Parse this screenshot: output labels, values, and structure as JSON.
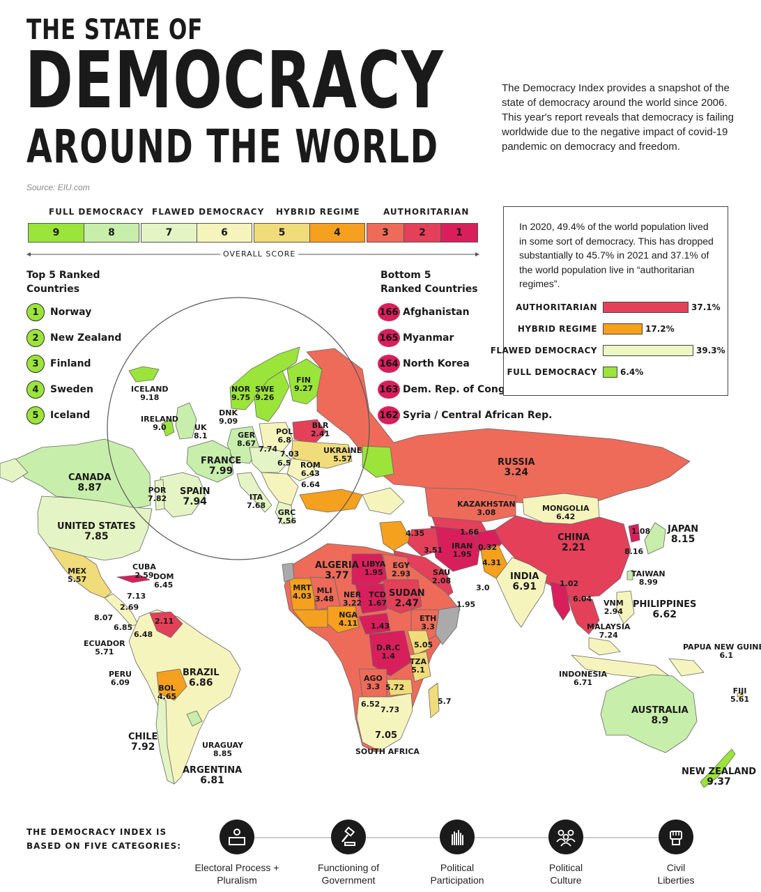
{
  "title": {
    "line1": "THE STATE OF",
    "line2": "DEMOCRACY",
    "line3": "AROUND THE WORLD"
  },
  "intro": "The Democracy Index provides a snapshot of the state of democracy around the world since 2006. This year's report reveals that democracy is failing worldwide due to the negative impact of covid-19 pandemic on democracy and freedom.",
  "source": "Source: EIU.com",
  "legend": {
    "groups": [
      "FULL DEMOCRACY",
      "FLAWED DEMOCRACY",
      "HYBRID REGIME",
      "AUTHORITARIAN"
    ],
    "scores": [
      "9",
      "8",
      "7",
      "6",
      "5",
      "4",
      "3",
      "2",
      "1"
    ],
    "colors": [
      "#9be43a",
      "#c8eeab",
      "#e5f4c4",
      "#f6f4bd",
      "#f0dc7a",
      "#f5a01e",
      "#ee6b5a",
      "#e4405a",
      "#d81f5c"
    ],
    "axis_label": "OVERALL SCORE"
  },
  "top5": {
    "title": [
      "Top 5 Ranked",
      "Countries"
    ],
    "items": [
      {
        "rank": "1",
        "name": "Norway"
      },
      {
        "rank": "2",
        "name": "New Zealand"
      },
      {
        "rank": "3",
        "name": "Finland"
      },
      {
        "rank": "4",
        "name": "Sweden"
      },
      {
        "rank": "5",
        "name": "Iceland"
      }
    ]
  },
  "bottom5": {
    "title": [
      "Bottom 5",
      "Ranked Countries"
    ],
    "items": [
      {
        "rank": "166",
        "name": "Afghanistan"
      },
      {
        "rank": "165",
        "name": "Myanmar"
      },
      {
        "rank": "164",
        "name": "North Korea"
      },
      {
        "rank": "163",
        "name": "Dem. Rep. of Congo"
      },
      {
        "rank": "162",
        "name": "Syria / Central African Rep."
      }
    ]
  },
  "population": {
    "text": "In 2020, 49.4% of the world population lived in some sort of democracy. This has dropped substantially to 45.7% in 2021 and 37.1% of the world population live in “authoritarian regimes”.",
    "bars": [
      {
        "label": "AUTHORITARIAN",
        "value": 37.1,
        "display": "37.1%",
        "color": "#e4405a"
      },
      {
        "label": "HYBRID REGIME",
        "value": 17.2,
        "display": "17.2%",
        "color": "#f5a01e"
      },
      {
        "label": "FLAWED DEMOCRACY",
        "value": 39.3,
        "display": "39.3%",
        "color": "#eef6c4"
      },
      {
        "label": "FULL DEMOCRACY",
        "value": 6.4,
        "display": "6.4%",
        "color": "#9be43a"
      }
    ]
  },
  "map_labels": {
    "canada": [
      "CANADA",
      "8.87"
    ],
    "us": [
      "UNITED STATES",
      "7.85"
    ],
    "mex": [
      "MEX",
      "5.57"
    ],
    "cuba": [
      "CUBA",
      "2.59"
    ],
    "dom": [
      "DOM",
      "6.45"
    ],
    "v713": "7.13",
    "v269": "2.69",
    "v807": "8.07",
    "v685": "6.85",
    "v648": "6.48",
    "v211": "2.11",
    "ecuador": [
      "ECUADOR",
      "5.71"
    ],
    "peru": [
      "PERU",
      "6.09"
    ],
    "brazil": [
      "BRAZIL",
      "6.86"
    ],
    "bol": [
      "BOL",
      "4.65"
    ],
    "chile": [
      "CHILE",
      "7.92"
    ],
    "uruguay": [
      "URAGUAY",
      "8.85"
    ],
    "argentina": [
      "ARGENTINA",
      "6.81"
    ],
    "iceland": [
      "ICELAND",
      "9.18"
    ],
    "ireland": [
      "IRELAND",
      "9.0"
    ],
    "uk": [
      "UK",
      "8.1"
    ],
    "nor": [
      "NOR",
      "9.75"
    ],
    "swe": [
      "SWE",
      "9.26"
    ],
    "fin": [
      "FIN",
      "9.27"
    ],
    "dnk": [
      "DNK",
      "9.09"
    ],
    "ger": [
      "GER",
      "8.67"
    ],
    "pol": [
      "POL",
      "6.8"
    ],
    "blr": [
      "BLR",
      "2.41"
    ],
    "ukraine": [
      "UKRAINE",
      "5.57"
    ],
    "france": [
      "FRANCE",
      "7.99"
    ],
    "v774": "7.74",
    "v703": "7.03",
    "v65": "6.5",
    "rom": [
      "ROM",
      "6.43"
    ],
    "v664": "6.64",
    "por": [
      "POR",
      "7.82"
    ],
    "spain": [
      "SPAIN",
      "7.94"
    ],
    "ita": [
      "ITA",
      "7.68"
    ],
    "grc": [
      "GRC",
      "7.56"
    ],
    "russia": [
      "RUSSIA",
      "3.24"
    ],
    "kazakhstan": [
      "KAZAKHSTAN",
      "3.08"
    ],
    "mongolia": [
      "MONGOLIA",
      "6.42"
    ],
    "china": [
      "CHINA",
      "2.21"
    ],
    "japan": [
      "JAPAN",
      "8.15"
    ],
    "v108": "1.08",
    "v816": "8.16",
    "taiwan": [
      "TAIWAN",
      "8.99"
    ],
    "india": [
      "INDIA",
      "6.91"
    ],
    "iran": [
      "IRAN",
      "1.95"
    ],
    "v166": "1.66",
    "v032": "0.32",
    "v431": "4.31",
    "v435": "4.35",
    "v351": "3.51",
    "sau": [
      "SAU",
      "2.08"
    ],
    "v30": "3.0",
    "v195": "1.95",
    "v102": "1.02",
    "v604": "6.04",
    "vnm": [
      "VNM",
      "2.94"
    ],
    "philippines": [
      "PHILIPPINES",
      "6.62"
    ],
    "malaysia": [
      "MALAYSIA",
      "7.24"
    ],
    "indonesia": [
      "INDONESIA",
      "6.71"
    ],
    "png": [
      "PAPUA NEW GUINEA",
      "6.1"
    ],
    "fiji": [
      "FIJI",
      "5.61"
    ],
    "australia": [
      "AUSTRALIA",
      "8.9"
    ],
    "nz": [
      "NEW ZEALAND",
      "9.37"
    ],
    "algeria": [
      "ALGERIA",
      "3.77"
    ],
    "libya": [
      "LIBYA",
      "1.95"
    ],
    "egy": [
      "EGY",
      "2.93"
    ],
    "mrt": [
      "MRT",
      "4.03"
    ],
    "mli": [
      "MLI",
      "3.48"
    ],
    "ner": [
      "NER",
      "3.22"
    ],
    "tcd": [
      "TCD",
      "1.67"
    ],
    "sudan": [
      "SUDAN",
      "2.47"
    ],
    "nga": [
      "NGA",
      "4.11"
    ],
    "eth": [
      "ETH",
      "3.3"
    ],
    "v143": "1.43",
    "drc": [
      "D.R.C",
      "1.4"
    ],
    "v505": "5.05",
    "tza": [
      "TZA",
      "5.1"
    ],
    "ago": [
      "AGO",
      "3.3"
    ],
    "v572": "5.72",
    "v652": "6.52",
    "v773": "7.73",
    "v57": "5.7",
    "v705": "7.05",
    "south_africa": "SOUTH AFRICA"
  },
  "categories": {
    "title": [
      "THE DEMOCRACY INDEX IS",
      "BASED ON FIVE CATEGORIES:"
    ],
    "items": [
      {
        "label": [
          "Electoral Process +",
          "Pluralism"
        ],
        "icon": "ballot-box-icon"
      },
      {
        "label": [
          "Functioning of",
          "Government"
        ],
        "icon": "gavel-icon"
      },
      {
        "label": [
          "Political",
          "Participation"
        ],
        "icon": "raised-hands-icon"
      },
      {
        "label": [
          "Political",
          "Culture"
        ],
        "icon": "people-group-icon"
      },
      {
        "label": [
          "Civil",
          "Liberties"
        ],
        "icon": "fist-icon"
      }
    ]
  }
}
